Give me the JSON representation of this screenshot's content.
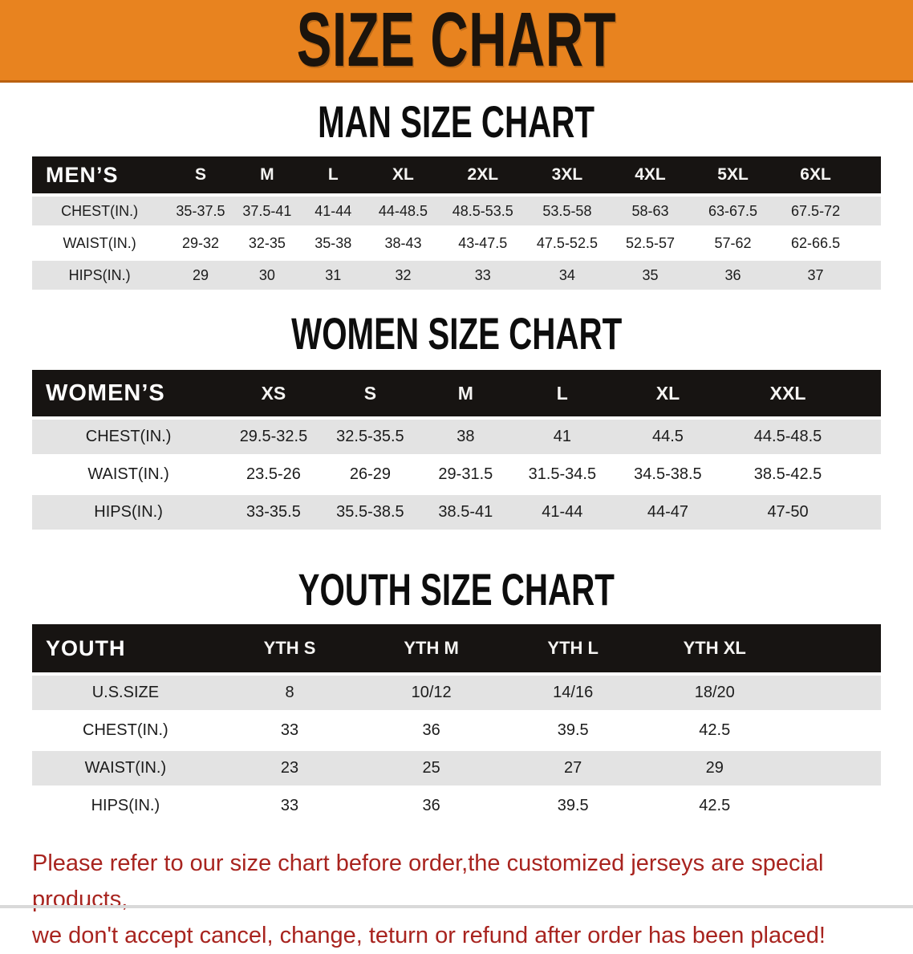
{
  "page": {
    "banner_title": "SIZE CHART"
  },
  "colors": {
    "banner_bg": "#E8831F",
    "banner_border": "#BA6110",
    "band_bg": "#171412",
    "stripe": "#E3E3E3",
    "note_red": "#A8241F"
  },
  "sections": {
    "men": {
      "heading": "MAN SIZE CHART",
      "group_label": "MEN’S",
      "sizes": [
        "S",
        "M",
        "L",
        "XL",
        "2XL",
        "3XL",
        "4XL",
        "5XL",
        "6XL"
      ],
      "rows": [
        {
          "label": "CHEST(IN.)",
          "values": [
            "35-37.5",
            "37.5-41",
            "41-44",
            "44-48.5",
            "48.5-53.5",
            "53.5-58",
            "58-63",
            "63-67.5",
            "67.5-72"
          ]
        },
        {
          "label": "WAIST(IN.)",
          "values": [
            "29-32",
            "32-35",
            "35-38",
            "38-43",
            "43-47.5",
            "47.5-52.5",
            "52.5-57",
            "57-62",
            "62-66.5"
          ]
        },
        {
          "label": "HIPS(IN.)",
          "values": [
            "29",
            "30",
            "31",
            "32",
            "33",
            "34",
            "35",
            "36",
            "37"
          ]
        }
      ]
    },
    "women": {
      "heading": "WOMEN SIZE CHART",
      "group_label": "WOMEN’S",
      "sizes": [
        "XS",
        "S",
        "M",
        "L",
        "XL",
        "XXL"
      ],
      "rows": [
        {
          "label": "CHEST(IN.)",
          "values": [
            "29.5-32.5",
            "32.5-35.5",
            "38",
            "41",
            "44.5",
            "44.5-48.5"
          ]
        },
        {
          "label": "WAIST(IN.)",
          "values": [
            "23.5-26",
            "26-29",
            "29-31.5",
            "31.5-34.5",
            "34.5-38.5",
            "38.5-42.5"
          ]
        },
        {
          "label": "HIPS(IN.)",
          "values": [
            "33-35.5",
            "35.5-38.5",
            "38.5-41",
            "41-44",
            "44-47",
            "47-50"
          ]
        }
      ]
    },
    "youth": {
      "heading": "YOUTH SIZE CHART",
      "group_label": "YOUTH",
      "sizes": [
        "YTH S",
        "YTH M",
        "YTH L",
        "YTH XL"
      ],
      "rows": [
        {
          "label": "U.S.SIZE",
          "values": [
            "8",
            "10/12",
            "14/16",
            "18/20"
          ]
        },
        {
          "label": "CHEST(IN.)",
          "values": [
            "33",
            "36",
            "39.5",
            "42.5"
          ]
        },
        {
          "label": "WAIST(IN.)",
          "values": [
            "23",
            "25",
            "27",
            "29"
          ]
        },
        {
          "label": "HIPS(IN.)",
          "values": [
            "33",
            "36",
            "39.5",
            "42.5"
          ]
        }
      ]
    }
  },
  "footer_note": {
    "line1": "Please refer to our size chart before order,the customized jerseys are special products,",
    "line2": "we don't accept cancel, change, teturn or refund after order has been placed!"
  }
}
